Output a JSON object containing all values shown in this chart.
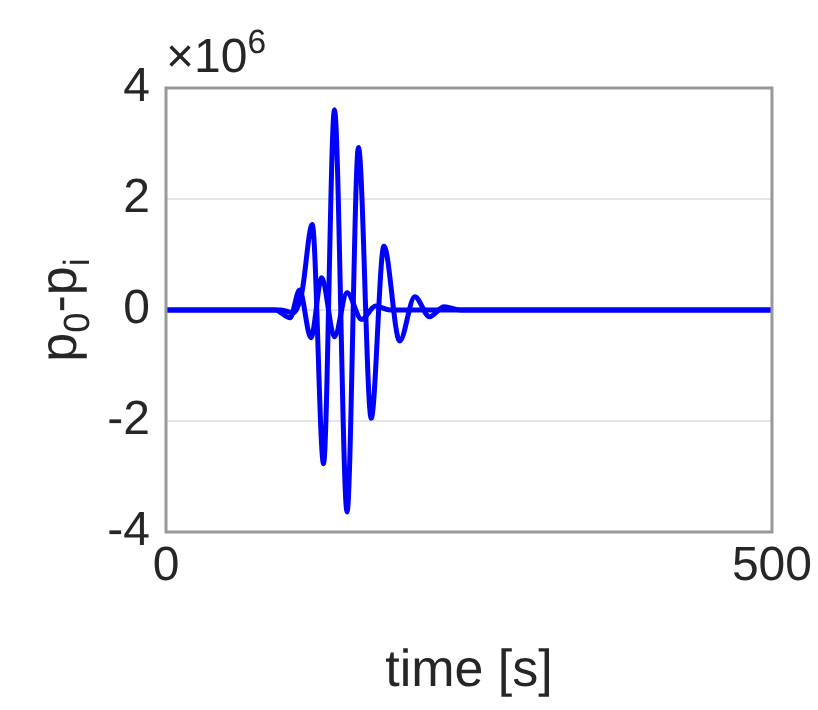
{
  "chart_data": {
    "type": "line",
    "xlabel": "time [s]",
    "ylabel": "p$_{0}$-p$_{i}$",
    "annotations": [
      "×10$^{6}$"
    ],
    "xlim": [
      0,
      500
    ],
    "xticks": [
      0,
      500
    ],
    "ylim": [
      -4,
      4
    ],
    "yticks": [
      -4,
      -2,
      0,
      2,
      4
    ],
    "grid": "y",
    "legend": false,
    "marker": "none",
    "line_style": "solid",
    "series": [
      {
        "color": "#0000ff",
        "x": [
          0,
          95,
          105,
          112,
          120.7,
          130,
          139,
          149.4,
          158.8,
          169.3,
          179.8,
          192.8,
          205.3,
          217.4,
          229.5,
          243,
          500
        ],
        "values": [
          0,
          0,
          -0.05,
          0.3,
          1.54,
          -2.77,
          3.61,
          -3.64,
          2.93,
          -1.95,
          1.15,
          -0.56,
          0.24,
          -0.12,
          0.06,
          0,
          0
        ]
      },
      {
        "color": "#0000ff",
        "x": [
          0,
          90,
          102.4,
          110.2,
          119.6,
          128.5,
          139,
          149.4,
          161.4,
          172.9,
          185,
          500
        ],
        "values": [
          0,
          0,
          -0.14,
          0.36,
          -0.5,
          0.58,
          -0.48,
          0.31,
          -0.17,
          0.07,
          0,
          0
        ]
      }
    ]
  }
}
